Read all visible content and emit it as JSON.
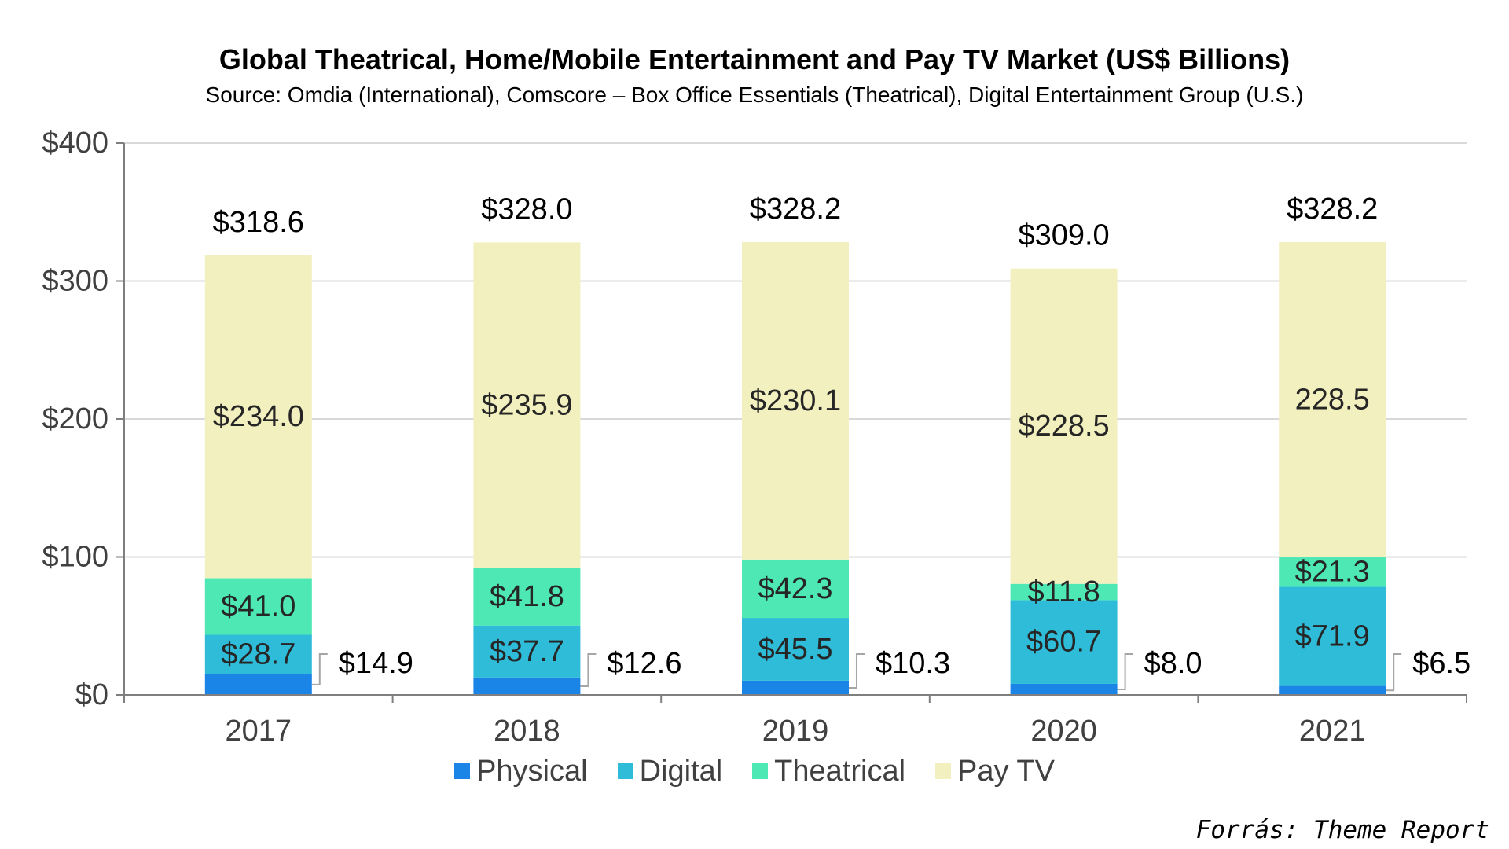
{
  "source_note": "Forrás: Theme Report",
  "chart_data": {
    "type": "bar",
    "stacked": true,
    "title": "Global Theatrical, Home/Mobile Entertainment and Pay TV Market (US$ Billions)",
    "subtitle": "Source: Omdia (International), Comscore – Box Office Essentials (Theatrical), Digital Entertainment Group (U.S.)",
    "categories": [
      "2017",
      "2018",
      "2019",
      "2020",
      "2021"
    ],
    "ylim": [
      0,
      400
    ],
    "yticks": [
      0,
      100,
      200,
      300,
      400
    ],
    "ytick_labels": [
      "$0",
      "$100",
      "$200",
      "$300",
      "$400"
    ],
    "grid": true,
    "legend_position": "bottom",
    "series": [
      {
        "name": "Physical",
        "color": "#1a85e6",
        "values": [
          14.9,
          12.6,
          10.3,
          8.0,
          6.5
        ],
        "labels": [
          "$14.9",
          "$12.6",
          "$10.3",
          "$8.0",
          "$6.5"
        ],
        "label_style": "callout"
      },
      {
        "name": "Digital",
        "color": "#2fbcd9",
        "values": [
          28.7,
          37.7,
          45.5,
          60.7,
          71.9
        ],
        "labels": [
          "$28.7",
          "$37.7",
          "$45.5",
          "$60.7",
          "$71.9"
        ]
      },
      {
        "name": "Theatrical",
        "color": "#4de8b4",
        "values": [
          41.0,
          41.8,
          42.3,
          11.8,
          21.3
        ],
        "labels": [
          "$41.0",
          "$41.8",
          "$42.3",
          "$11.8",
          "$21.3"
        ]
      },
      {
        "name": "Pay TV",
        "color": "#f3f0bf",
        "values": [
          234.0,
          235.9,
          230.1,
          228.5,
          228.5
        ],
        "labels": [
          "$234.0",
          "$235.9",
          "$230.1",
          "$228.5",
          "228.5"
        ]
      }
    ],
    "totals": [
      318.6,
      328.0,
      328.2,
      309.0,
      328.2
    ],
    "total_labels": [
      "$318.6",
      "$328.0",
      "$328.2",
      "$309.0",
      "$328.2"
    ]
  }
}
